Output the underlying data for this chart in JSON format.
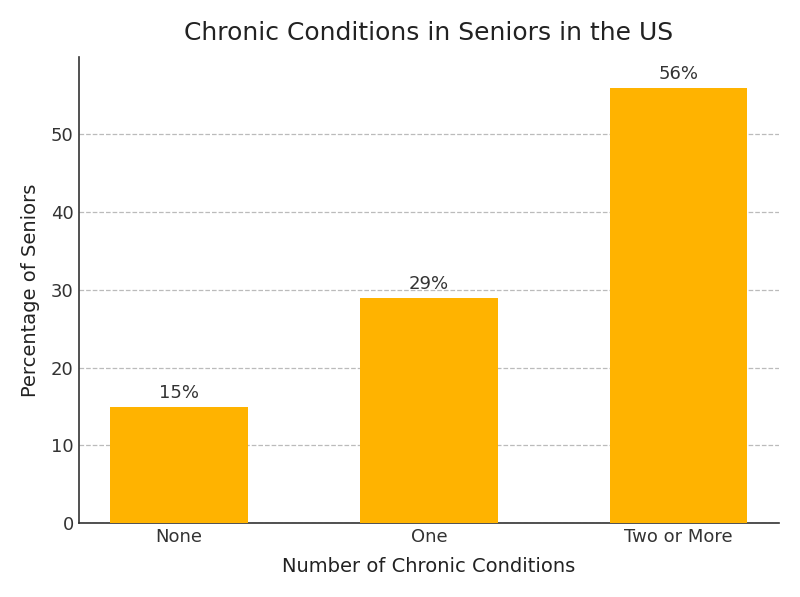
{
  "title": "Chronic Conditions in Seniors in the US",
  "categories": [
    "None",
    "One",
    "Two or More"
  ],
  "values": [
    15,
    29,
    56
  ],
  "bar_color": "#FFB300",
  "xlabel": "Number of Chronic Conditions",
  "ylabel": "Percentage of Seniors",
  "ylim": [
    0,
    60
  ],
  "yticks": [
    0,
    10,
    20,
    30,
    40,
    50
  ],
  "grid_color": "#BBBBBB",
  "grid_style": "--",
  "background_color": "#FFFFFF",
  "title_fontsize": 18,
  "label_fontsize": 14,
  "tick_fontsize": 13,
  "annotation_fontsize": 13,
  "bar_width": 0.55
}
